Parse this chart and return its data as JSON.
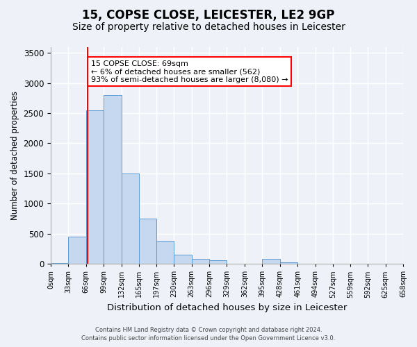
{
  "title": "15, COPSE CLOSE, LEICESTER, LE2 9GP",
  "subtitle": "Size of property relative to detached houses in Leicester",
  "xlabel": "Distribution of detached houses by size in Leicester",
  "ylabel": "Number of detached properties",
  "footer_line1": "Contains HM Land Registry data © Crown copyright and database right 2024.",
  "footer_line2": "Contains public sector information licensed under the Open Government Licence v3.0.",
  "annotation_title": "15 COPSE CLOSE: 69sqm",
  "annotation_line1": "← 6% of detached houses are smaller (562)",
  "annotation_line2": "93% of semi-detached houses are larger (8,080) →",
  "bar_color": "#c5d8f0",
  "bar_edge_color": "#5b9bd5",
  "vline_color": "red",
  "vline_x": 69,
  "bin_edges": [
    0,
    33,
    66,
    99,
    132,
    165,
    197,
    230,
    263,
    296,
    329,
    362,
    395,
    428,
    461,
    494,
    527,
    559,
    592,
    625,
    658
  ],
  "bar_heights": [
    10,
    450,
    2550,
    2800,
    1500,
    750,
    380,
    150,
    80,
    60,
    0,
    0,
    80,
    30,
    5,
    2,
    1,
    0,
    0,
    0
  ],
  "tick_labels": [
    "0sqm",
    "33sqm",
    "66sqm",
    "99sqm",
    "132sqm",
    "165sqm",
    "197sqm",
    "230sqm",
    "263sqm",
    "296sqm",
    "329sqm",
    "362sqm",
    "395sqm",
    "428sqm",
    "461sqm",
    "494sqm",
    "527sqm",
    "559sqm",
    "592sqm",
    "625sqm",
    "658sqm"
  ],
  "ylim": [
    0,
    3600
  ],
  "xlim": [
    0,
    658
  ],
  "background_color": "#eef2f8",
  "plot_bg_color": "#eef2f8",
  "title_fontsize": 12,
  "subtitle_fontsize": 10,
  "annotation_box_color": "white",
  "annotation_box_edge": "red",
  "grid_color": "#ffffff"
}
